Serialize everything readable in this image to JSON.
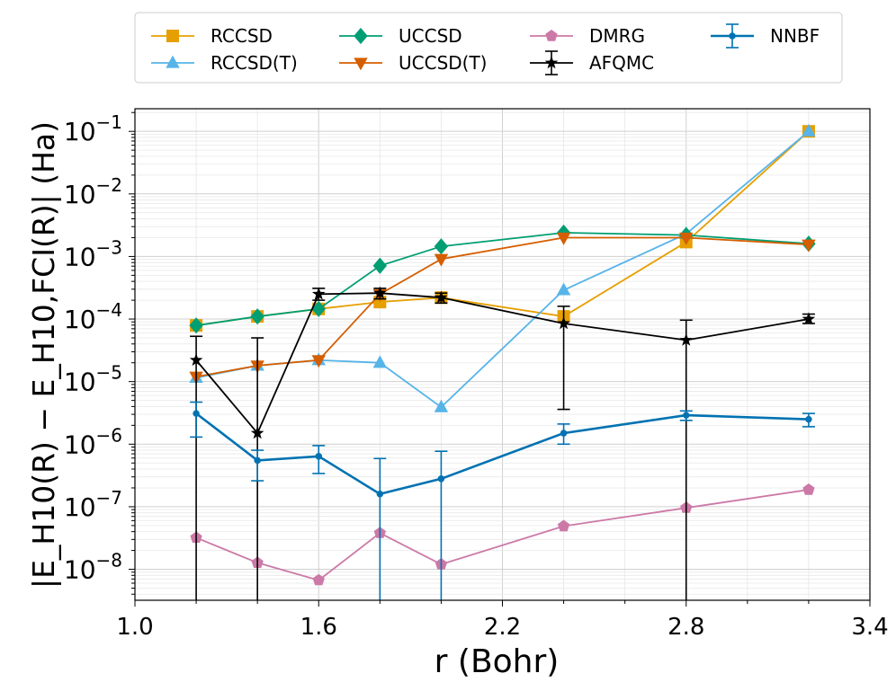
{
  "chart_data": {
    "type": "line",
    "title": "",
    "xlabel": "r (Bohr)",
    "ylabel": "|E_H10(R) − E_H10,FCI(R)| (Ha)",
    "xscale": "linear",
    "yscale": "log",
    "xlim": [
      1.0,
      3.4
    ],
    "ylim": [
      3.2e-09,
      0.23
    ],
    "xticks": [
      1.0,
      1.6,
      2.2,
      2.8,
      3.4
    ],
    "xtick_labels": [
      "1.0",
      "1.6",
      "2.2",
      "2.8",
      "3.4"
    ],
    "yticks": [
      -1,
      -2,
      -3,
      -4,
      -5,
      -6,
      -7,
      -8
    ],
    "ytick_base": "10",
    "grid": true,
    "legend_position": "top-outside",
    "x": [
      1.2,
      1.4,
      1.6,
      1.8,
      2.0,
      2.4,
      2.8,
      3.2
    ],
    "series": [
      {
        "name": "RCCSD",
        "color": "#E69F00",
        "marker": "square",
        "values": [
          7.9e-05,
          0.00011,
          0.000145,
          0.000187,
          0.00022,
          0.00011,
          0.0017,
          0.1
        ]
      },
      {
        "name": "RCCSD(T)",
        "color": "#56B4E9",
        "marker": "triangle-up",
        "values": [
          1.15e-05,
          1.8e-05,
          2.2e-05,
          2e-05,
          3.9e-06,
          0.00029,
          0.0023,
          0.1
        ]
      },
      {
        "name": "UCCSD",
        "color": "#009E73",
        "marker": "diamond",
        "values": [
          7.9e-05,
          0.00011,
          0.000145,
          0.00071,
          0.00145,
          0.0024,
          0.0022,
          0.0016
        ]
      },
      {
        "name": "UCCSD(T)",
        "color": "#D55E00",
        "marker": "triangle-down",
        "values": [
          1.2e-05,
          1.8e-05,
          2.2e-05,
          0.00025,
          0.00091,
          0.002,
          0.002,
          0.00155
        ]
      },
      {
        "name": "DMRG",
        "color": "#CC79A7",
        "marker": "pentagon",
        "values": [
          3.2e-08,
          1.27e-08,
          6.7e-09,
          3.8e-08,
          1.2e-08,
          4.9e-08,
          9.6e-08,
          1.87e-07
        ]
      },
      {
        "name": "AFQMC",
        "color": "#000000",
        "marker": "star",
        "values": [
          2.2e-05,
          1.5e-06,
          0.00025,
          0.00026,
          0.00022,
          8.5e-05,
          4.6e-05,
          0.0001
        ],
        "err_upper": [
          5.3e-05,
          5e-05,
          0.00031,
          0.00031,
          0.00026,
          0.00016,
          9.6e-05,
          0.00012
        ],
        "err_lower": [
          0,
          0,
          0.0002,
          0.00021,
          0.00018,
          3.6e-06,
          0,
          8.5e-05
        ]
      },
      {
        "name": "NNBF",
        "color": "#0072B2",
        "marker": "circle",
        "values": [
          3.1e-06,
          5.5e-07,
          6.4e-07,
          1.6e-07,
          2.8e-07,
          1.5e-06,
          2.9e-06,
          2.5e-06
        ],
        "err_upper": [
          4.7e-06,
          8e-07,
          9.5e-07,
          5.9e-07,
          7.7e-07,
          2.1e-06,
          3.4e-06,
          3.1e-06
        ],
        "err_lower": [
          1.3e-06,
          2.6e-07,
          3.4e-07,
          0,
          0,
          1e-06,
          2.4e-06,
          1.9e-06
        ]
      }
    ],
    "legend_order": [
      0,
      1,
      2,
      3,
      4,
      5,
      6
    ]
  }
}
